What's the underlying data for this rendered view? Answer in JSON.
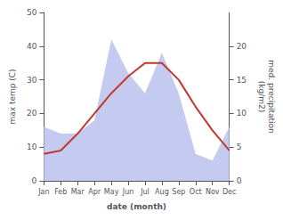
{
  "chart_data": {
    "type": "line",
    "xlabel": "date (month)",
    "ylabel": "max temp (C)",
    "y2label": "med. precipitation\n(kg/m2)",
    "categories": [
      "Jan",
      "Feb",
      "Mar",
      "Apr",
      "May",
      "Jun",
      "Jul",
      "Aug",
      "Sep",
      "Oct",
      "Nov",
      "Dec"
    ],
    "series": [
      {
        "type": "area",
        "axis": "y2",
        "color": "#c5caf0",
        "values": [
          8,
          7,
          7,
          9,
          21,
          16,
          13,
          19,
          13,
          4,
          3,
          8
        ]
      },
      {
        "type": "line",
        "color": "#c0392b",
        "values": [
          8,
          9,
          14,
          20,
          26,
          31,
          35,
          35,
          30,
          22,
          15,
          9
        ]
      }
    ],
    "ylim": [
      0,
      50
    ],
    "yticks": [
      0,
      10,
      20,
      30,
      40,
      50
    ],
    "y2lim": [
      0,
      25
    ],
    "y2ticks": [
      0,
      5,
      10,
      15,
      20
    ],
    "grid": false
  }
}
